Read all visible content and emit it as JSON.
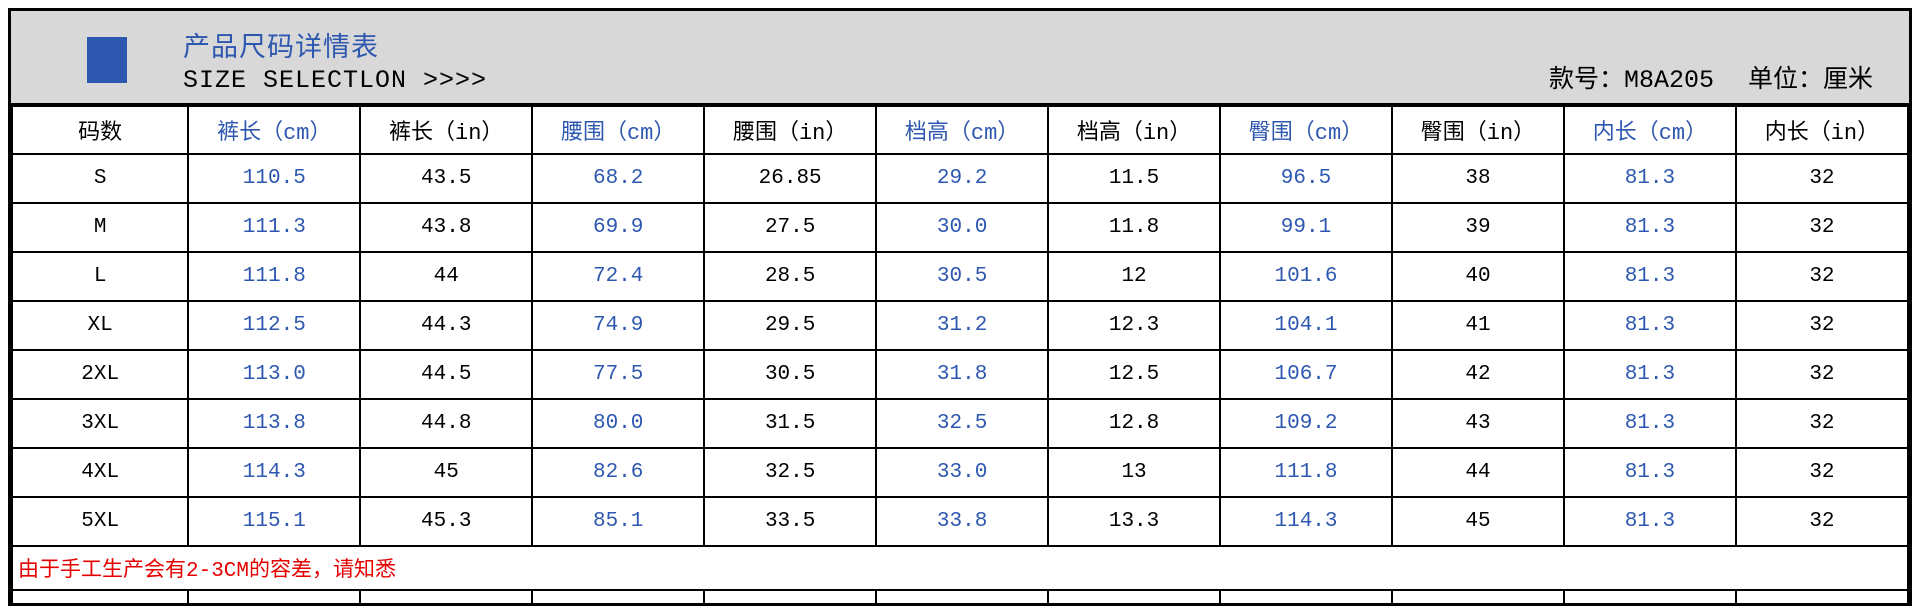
{
  "colors": {
    "accent_blue": "#2e58b0",
    "note_red": "#e60000",
    "text_black": "#000000",
    "band_gray": "#d8d8d8"
  },
  "header": {
    "title": "产品尺码详情表",
    "subtitle": "SIZE SELECTLON >>>>",
    "style_no": "款号：M8A205",
    "unit": "单位：厘米"
  },
  "table": {
    "columns": [
      {
        "label": "码数",
        "color": "#000000",
        "width": "9.3%"
      },
      {
        "label": "裤长（cm）",
        "color": "#2e58b0",
        "width": "9.07%"
      },
      {
        "label": "裤长（in）",
        "color": "#000000",
        "width": "9.07%"
      },
      {
        "label": "腰围（cm）",
        "color": "#2e58b0",
        "width": "9.07%"
      },
      {
        "label": "腰围（in）",
        "color": "#000000",
        "width": "9.07%"
      },
      {
        "label": "档高（cm）",
        "color": "#2e58b0",
        "width": "9.07%"
      },
      {
        "label": "档高（in）",
        "color": "#000000",
        "width": "9.07%"
      },
      {
        "label": "臀围（cm）",
        "color": "#2e58b0",
        "width": "9.07%"
      },
      {
        "label": "臀围（in）",
        "color": "#000000",
        "width": "9.07%"
      },
      {
        "label": "内长（cm）",
        "color": "#2e58b0",
        "width": "9.07%"
      },
      {
        "label": "内长（in）",
        "color": "#000000",
        "width": "9.07%"
      }
    ],
    "rows": [
      {
        "size": "S",
        "values": [
          "110.5",
          "43.5",
          "68.2",
          "26.85",
          "29.2",
          "11.5",
          "96.5",
          "38",
          "81.3",
          "32"
        ]
      },
      {
        "size": "M",
        "values": [
          "111.3",
          "43.8",
          "69.9",
          "27.5",
          "30.0",
          "11.8",
          "99.1",
          "39",
          "81.3",
          "32"
        ]
      },
      {
        "size": "L",
        "values": [
          "111.8",
          "44",
          "72.4",
          "28.5",
          "30.5",
          "12",
          "101.6",
          "40",
          "81.3",
          "32"
        ]
      },
      {
        "size": "XL",
        "values": [
          "112.5",
          "44.3",
          "74.9",
          "29.5",
          "31.2",
          "12.3",
          "104.1",
          "41",
          "81.3",
          "32"
        ]
      },
      {
        "size": "2XL",
        "values": [
          "113.0",
          "44.5",
          "77.5",
          "30.5",
          "31.8",
          "12.5",
          "106.7",
          "42",
          "81.3",
          "32"
        ]
      },
      {
        "size": "3XL",
        "values": [
          "113.8",
          "44.8",
          "80.0",
          "31.5",
          "32.5",
          "12.8",
          "109.2",
          "43",
          "81.3",
          "32"
        ]
      },
      {
        "size": "4XL",
        "values": [
          "114.3",
          "45",
          "82.6",
          "32.5",
          "33.0",
          "13",
          "111.8",
          "44",
          "81.3",
          "32"
        ]
      },
      {
        "size": "5XL",
        "values": [
          "115.1",
          "45.3",
          "85.1",
          "33.5",
          "33.8",
          "13.3",
          "114.3",
          "45",
          "81.3",
          "32"
        ]
      }
    ]
  },
  "footer": {
    "note": "由于手工生产会有2-3CM的容差，请知悉"
  }
}
